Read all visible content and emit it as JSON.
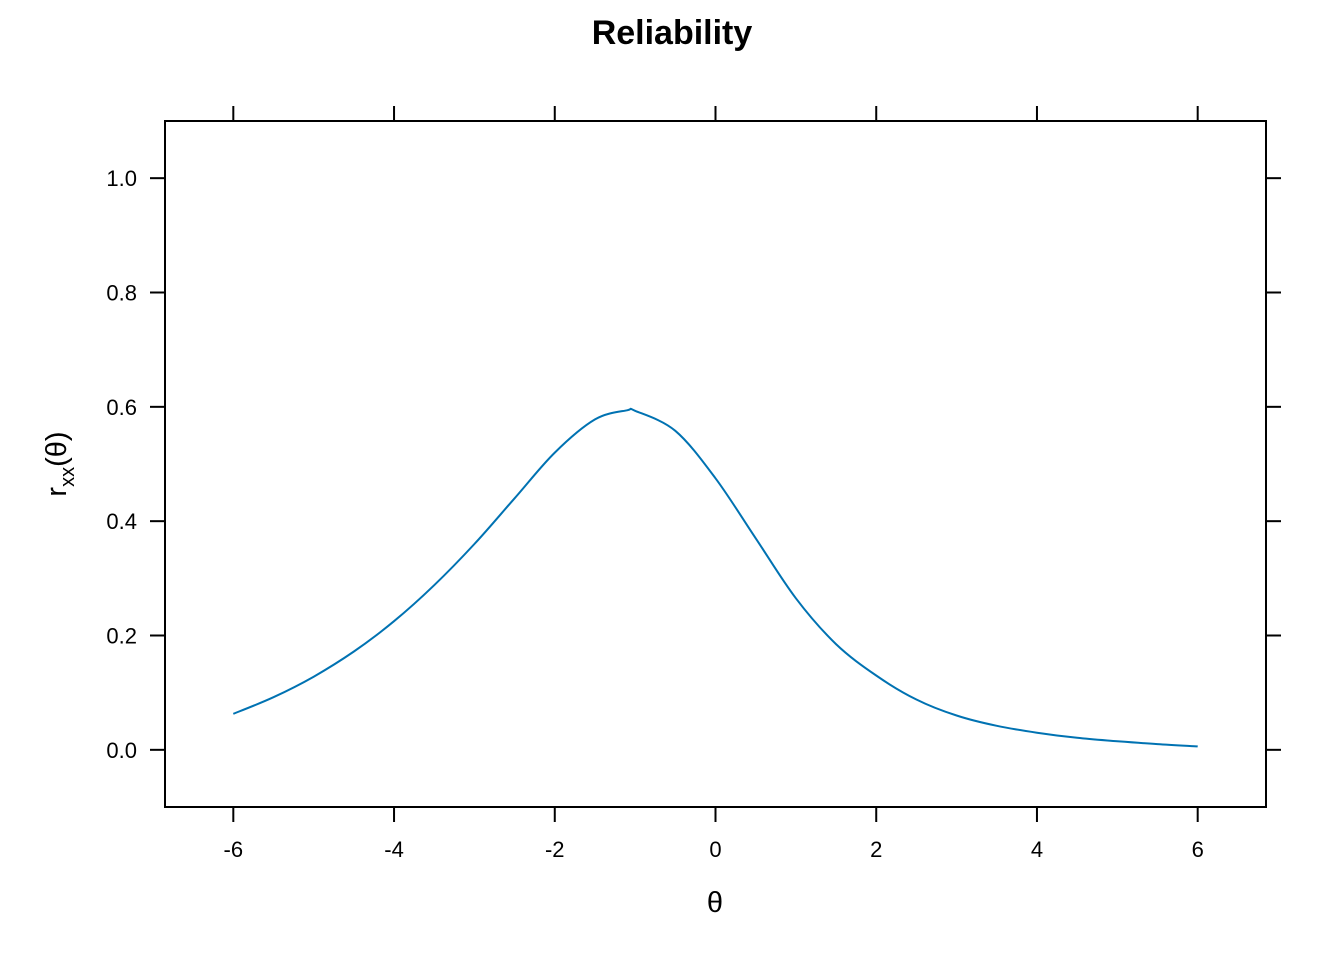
{
  "chart_data": {
    "type": "line",
    "title": "Reliability",
    "xlabel": "θ",
    "ylabel_main": "r",
    "ylabel_sub": "xx",
    "ylabel_tail": "(θ)",
    "xlim": [
      -6.85,
      6.85
    ],
    "ylim": [
      -0.1,
      1.1
    ],
    "x_ticks": [
      -6,
      -4,
      -2,
      0,
      2,
      4,
      6
    ],
    "x_tick_labels": [
      "-6",
      "-4",
      "-2",
      "0",
      "2",
      "4",
      "6"
    ],
    "y_ticks": [
      0.0,
      0.2,
      0.4,
      0.6,
      0.8,
      1.0
    ],
    "y_tick_labels": [
      "0.0",
      "0.2",
      "0.4",
      "0.6",
      "0.8",
      "1.0"
    ],
    "grid": false,
    "series": [
      {
        "color": "#0072b2",
        "x": [
          -6,
          -5.5,
          -5,
          -4.5,
          -4,
          -3.5,
          -3,
          -2.5,
          -2,
          -1.5,
          -1.1,
          -1,
          -0.5,
          0,
          0.5,
          1,
          1.5,
          2,
          2.5,
          3,
          3.5,
          4,
          4.5,
          5,
          5.5,
          6
        ],
        "y": [
          0.063,
          0.092,
          0.128,
          0.172,
          0.225,
          0.288,
          0.36,
          0.44,
          0.52,
          0.578,
          0.594,
          0.593,
          0.558,
          0.475,
          0.37,
          0.265,
          0.185,
          0.13,
          0.088,
          0.06,
          0.042,
          0.03,
          0.021,
          0.015,
          0.01,
          0.006
        ]
      }
    ]
  }
}
